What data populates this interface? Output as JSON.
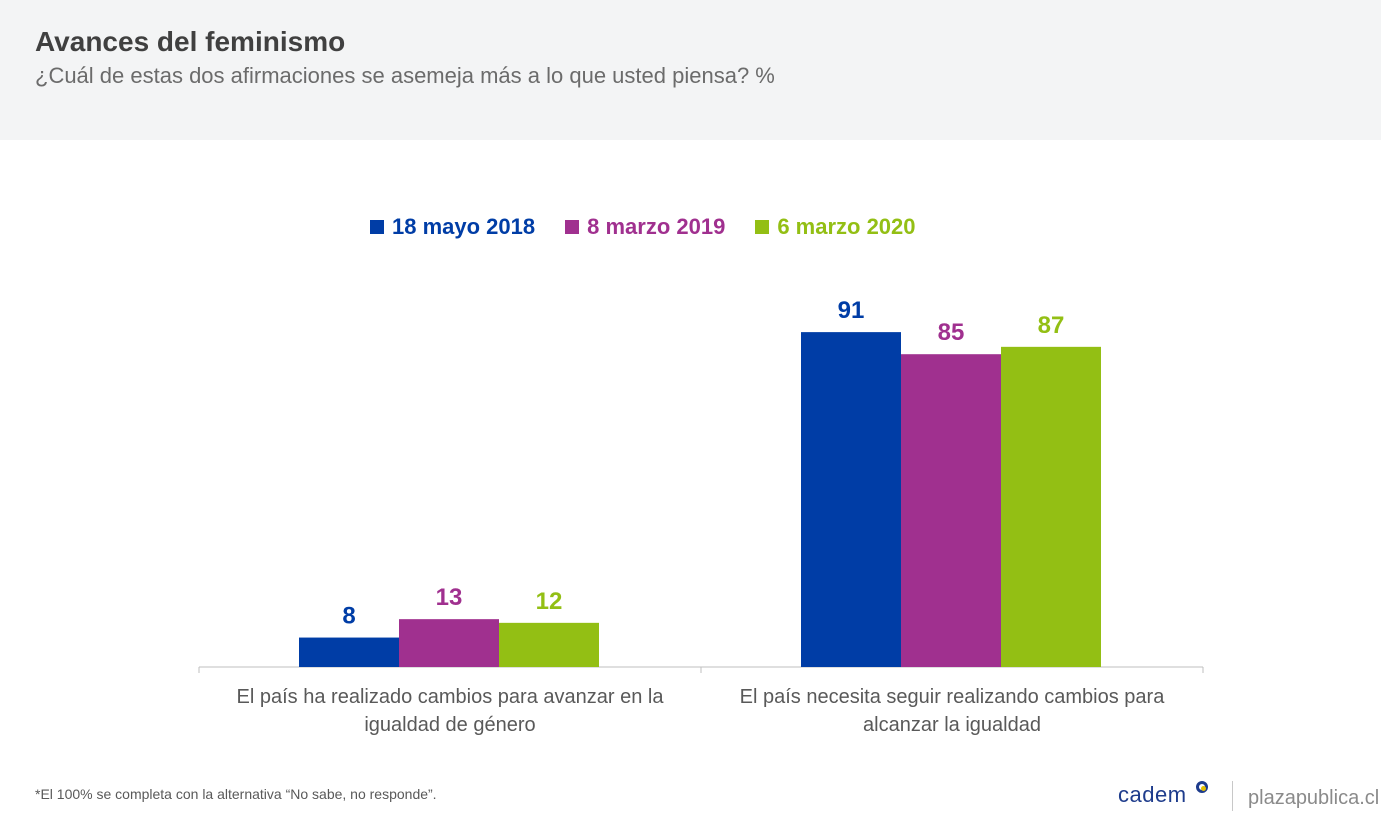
{
  "header": {
    "title": "Avances del feminismo",
    "subtitle": "¿Cuál de estas dos afirmaciones se asemeja más a lo que usted piensa? %"
  },
  "chart_data": {
    "type": "bar",
    "categories": [
      "El país ha realizado cambios para avanzar en la igualdad de género",
      "El país necesita seguir realizando cambios para alcanzar la igualdad"
    ],
    "series": [
      {
        "name": "18 mayo 2018",
        "color": "#003da6",
        "values": [
          8,
          91
        ]
      },
      {
        "name": "8 marzo 2019",
        "color": "#a0308f",
        "values": [
          13,
          85
        ]
      },
      {
        "name": "6 marzo 2020",
        "color": "#93bf14",
        "values": [
          12,
          87
        ]
      }
    ],
    "ylim": [
      0,
      100
    ],
    "legend_position": "top-center",
    "grid": false
  },
  "footnote": "*El 100% se completa con la alternativa “No sabe, no responde”.",
  "brand": {
    "logo_text": "cadem",
    "site": "plazapublica.cl"
  }
}
